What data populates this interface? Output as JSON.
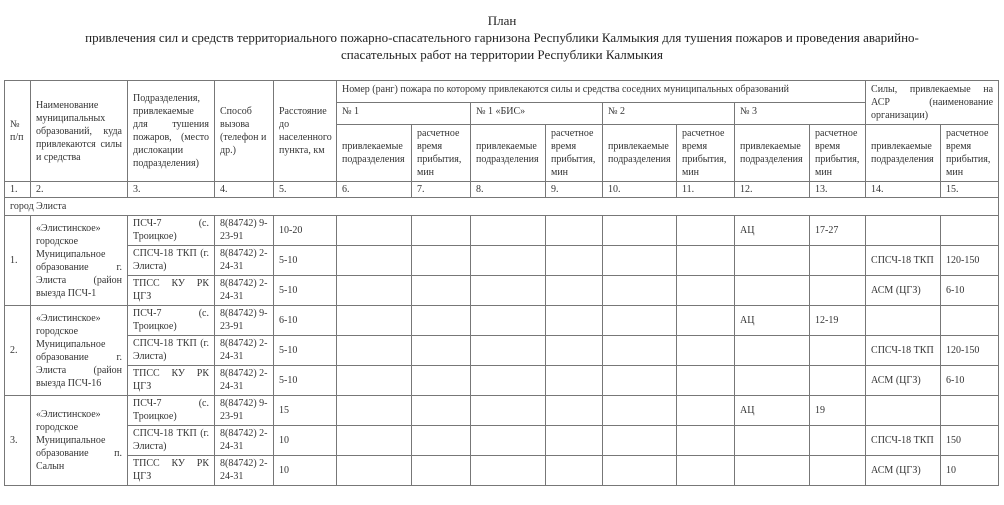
{
  "title": {
    "line1": "План",
    "line2": "привлечения сил и средств территориального пожарно-спасательного гарнизона Республики Калмыкия для тушения пожаров и проведения аварийно-",
    "line3": "спасательных работ на территории Республики Калмыкия"
  },
  "header": {
    "col1": "№ п/п",
    "col2": "Наименование муниципальных образований, куда привлекаются силы и средства",
    "col3": "Подразделения, привлекаемые для тушения пожаров, (место дислокации подразделения)",
    "col4": "Способ вызова (телефон и др.)",
    "col5": "Расстояние до населенного пункта, км",
    "group_fire": "Номер (ранг) пожара по которому привлекаются силы и средства соседних муниципальных образований",
    "group_asr": "Силы, привлекаемые на АСР (наименование организации)",
    "ranks": [
      "№ 1",
      "№ 1 «БИС»",
      "№ 2",
      "№ 3"
    ],
    "sub_units": "привлекаемые подразделения",
    "sub_time": "расчетное время прибытия, мин",
    "numbers": [
      "1.",
      "2.",
      "3.",
      "4.",
      "5.",
      "6.",
      "7.",
      "8.",
      "9.",
      "10.",
      "11.",
      "12.",
      "13.",
      "14.",
      "15."
    ]
  },
  "section": "город Элиста",
  "groups": [
    {
      "num": "1.",
      "name": "«Элистинское» городское Муниципальное образование г. Элиста (район выезда ПСЧ-1",
      "rows": [
        {
          "unit": "ПСЧ-7 (с. Троицкое)",
          "phone": "8(84742) 9-23-91",
          "dist": "10-20",
          "r3_unit": "АЦ",
          "r3_time": "17-27",
          "asr_unit": "",
          "asr_time": ""
        },
        {
          "unit": "СПСЧ-18 ТКП (г. Элиста)",
          "phone": "8(84742) 2-24-31",
          "dist": "5-10",
          "r3_unit": "",
          "r3_time": "",
          "asr_unit": "СПСЧ-18 ТКП",
          "asr_time": "120-150"
        },
        {
          "unit": "ТПСС КУ РК ЦГЗ",
          "phone": "8(84742) 2-24-31",
          "dist": "5-10",
          "r3_unit": "",
          "r3_time": "",
          "asr_unit": "АСМ (ЦГЗ)",
          "asr_time": "6-10"
        }
      ]
    },
    {
      "num": "2.",
      "name": "«Элистинское» городское Муниципальное образование г. Элиста (район выезда ПСЧ-16",
      "rows": [
        {
          "unit": "ПСЧ-7 (с. Троицкое)",
          "phone": "8(84742) 9-23-91",
          "dist": "6-10",
          "r3_unit": "АЦ",
          "r3_time": "12-19",
          "asr_unit": "",
          "asr_time": ""
        },
        {
          "unit": "СПСЧ-18 ТКП (г. Элиста)",
          "phone": "8(84742) 2-24-31",
          "dist": "5-10",
          "r3_unit": "",
          "r3_time": "",
          "asr_unit": "СПСЧ-18 ТКП",
          "asr_time": "120-150"
        },
        {
          "unit": "ТПСС КУ РК ЦГЗ",
          "phone": "8(84742) 2-24-31",
          "dist": "5-10",
          "r3_unit": "",
          "r3_time": "",
          "asr_unit": "АСМ (ЦГЗ)",
          "asr_time": "6-10"
        }
      ]
    },
    {
      "num": "3.",
      "name": "«Элистинское» городское Муниципальное образование п. Салын",
      "rows": [
        {
          "unit": "ПСЧ-7 (с. Троицкое)",
          "phone": "8(84742) 9-23-91",
          "dist": "15",
          "r3_unit": "АЦ",
          "r3_time": "19",
          "asr_unit": "",
          "asr_time": ""
        },
        {
          "unit": "СПСЧ-18 ТКП (г. Элиста)",
          "phone": "8(84742) 2-24-31",
          "dist": "10",
          "r3_unit": "",
          "r3_time": "",
          "asr_unit": "СПСЧ-18 ТКП",
          "asr_time": "150"
        },
        {
          "unit": "ТПСС КУ РК ЦГЗ",
          "phone": "8(84742) 2-24-31",
          "dist": "10",
          "r3_unit": "",
          "r3_time": "",
          "asr_unit": "АСМ (ЦГЗ)",
          "asr_time": "10"
        }
      ]
    }
  ]
}
